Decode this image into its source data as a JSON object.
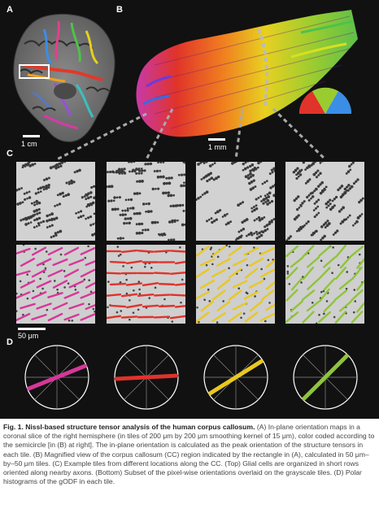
{
  "panels": {
    "a_label": "A",
    "b_label": "B",
    "c_label": "C",
    "d_label": "D"
  },
  "scale_bars": {
    "a": "1 cm",
    "b": "1 mm",
    "c": "50 μm"
  },
  "tile_orientations": [
    {
      "angle_deg": 22,
      "color": "#d8369a"
    },
    {
      "angle_deg": 3,
      "color": "#e0332a"
    },
    {
      "angle_deg": 32,
      "color": "#e9c820"
    },
    {
      "angle_deg": 45,
      "color": "#8fc43a"
    }
  ],
  "caption": {
    "title": "Fig. 1. Nissl-based structure tensor analysis of the human corpus callosum.",
    "text_a1": " (A) In-plane orientation maps in a coronal slice of the right hemisphere (in tiles of 200 μm by 200 μm  smoothing kernel of 15 μm), color coded according to the semicircle [in (B) at right]. The in-plane orientation is calculated as the peak orientation of the structure tensors in each tile.",
    "text_b": " (B) Magnified view of the corpus callosum (CC) region indicated by the rectangle in (A), calculated in 50 μm–by–50 μm tiles.",
    "text_c": " (C) Example tiles from different locations along the CC. (Top) Glial cells are organized in short rows oriented along nearby axons. (Bottom) Subset of the pixel-wise orientations overlaid on the grayscale tiles.",
    "text_d": " (D) Polar histograms of the gODF in each tile."
  }
}
